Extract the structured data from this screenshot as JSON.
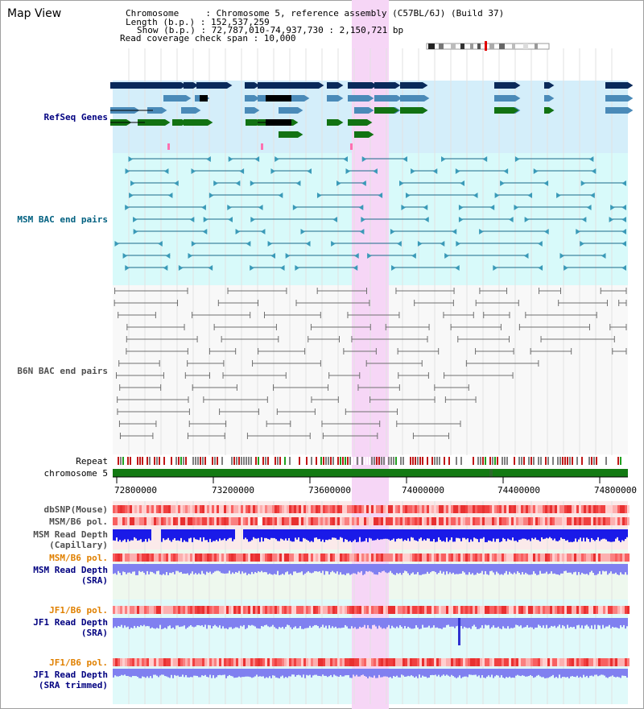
{
  "page": {
    "title": "Map View"
  },
  "info": {
    "chromosome_line": "Chromosome     : Chromosome 5, reference assembly (C57BL/6J) (Build 37)",
    "length_line": "Length (b.p.) : 152,537,259",
    "show_line": "Show (b.p.) : 72,787,010-74,937,730 : 2,150,721 bp",
    "coverage_line": "Read coverage check span : 10,000"
  },
  "tracks": {
    "refseq": "RefSeq Genes",
    "msm_bac": "MSM BAC end pairs",
    "b6n_bac": "B6N BAC end pairs",
    "repeat": "Repeat",
    "chromosome": "chromosome 5",
    "dbsnp": "dbSNP(Mouse)",
    "msm_b6_pol_1": "MSM/B6 pol.",
    "msm_depth_cap_1": "MSM Read Depth",
    "msm_depth_cap_2": "(Capillary)",
    "msm_b6_pol_2": "MSM/B6 pol.",
    "msm_depth_sra_1": "MSM Read Depth",
    "msm_depth_sra_2": "(SRA)",
    "jf1_b6_pol_1": "JF1/B6 pol.",
    "jf1_depth_sra_1": "JF1 Read Depth",
    "jf1_depth_sra_2": "(SRA)",
    "jf1_b6_pol_2": "JF1/B6 pol.",
    "jf1_depth_trim_1": "JF1 Read Depth",
    "jf1_depth_trim_2": "(SRA trimmed)"
  },
  "axis": {
    "ticks": [
      "72800000",
      "73200000",
      "73600000",
      "74000000",
      "74400000",
      "74800000"
    ],
    "tick_values": [
      72800000,
      73200000,
      73600000,
      74000000,
      74400000,
      74800000
    ]
  },
  "colors": {
    "refseq_bg": "#d4eefa",
    "msm_bg": "#d8fafa",
    "b6n_bg": "#f8f8f8",
    "highlight": "#f6d6f6",
    "gene_dark": "#0a2a5a",
    "gene_mid": "#4a8ab8",
    "gene_green": "#127212",
    "msm_line": "#1a6a8a",
    "b6n_line": "#707070",
    "chrom_green": "#137a13",
    "pol_red": "#e84040",
    "depth_blue": "#1a1ae8",
    "depth_light": "#8080f0",
    "label_navy": "#000080",
    "label_teal": "#006080",
    "label_orange": "#e08000"
  }
}
